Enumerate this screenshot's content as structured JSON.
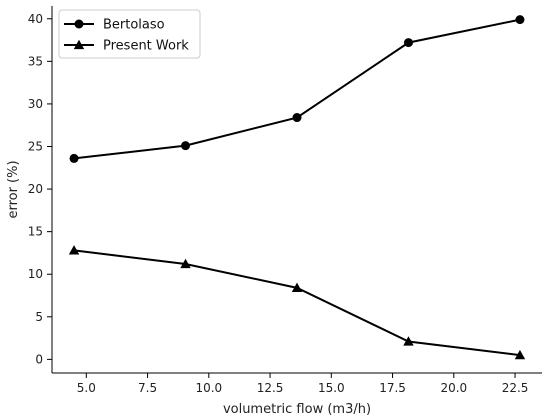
{
  "chart_data": {
    "type": "line",
    "xlabel": "volumetric flow (m3/h)",
    "ylabel": "error (%)",
    "xlim": [
      3.6,
      23.6
    ],
    "ylim": [
      -1.6,
      41.5
    ],
    "x_ticks": [
      "5.0",
      "7.5",
      "10.0",
      "12.5",
      "15.0",
      "17.5",
      "20.0",
      "22.5"
    ],
    "y_ticks": [
      "0",
      "5",
      "10",
      "15",
      "20",
      "25",
      "30",
      "35",
      "40"
    ],
    "grid": false,
    "legend_position": "top-left",
    "series": [
      {
        "name": "Bertolaso",
        "marker": "circle",
        "color": "#000000",
        "x": [
          4.5,
          9.05,
          13.6,
          18.15,
          22.7
        ],
        "y": [
          23.6,
          25.1,
          28.4,
          37.2,
          39.9
        ]
      },
      {
        "name": "Present Work",
        "marker": "triangle",
        "color": "#000000",
        "x": [
          4.5,
          9.05,
          13.6,
          18.15,
          22.7
        ],
        "y": [
          12.8,
          11.2,
          8.4,
          2.1,
          0.5
        ]
      }
    ]
  }
}
